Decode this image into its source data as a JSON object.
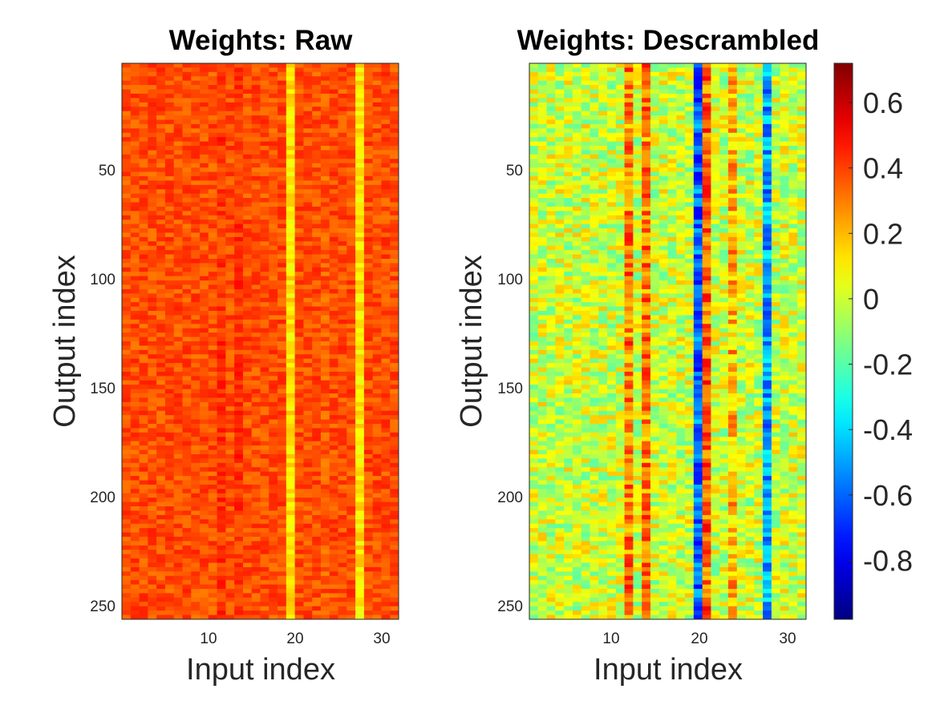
{
  "chart_data": [
    {
      "type": "heatmap",
      "title": "Weights: Raw",
      "xlabel": "Input index",
      "ylabel": "Output index",
      "x_range": [
        1,
        32
      ],
      "y_range": [
        1,
        256
      ],
      "y_reversed": true,
      "x_ticks": [
        "10",
        "20",
        "30"
      ],
      "y_ticks": [
        "50",
        "100",
        "150",
        "200",
        "250"
      ],
      "value_range": [
        0.05,
        0.55
      ],
      "typical_value": 0.38,
      "column_means": [
        0.38,
        0.38,
        0.38,
        0.38,
        0.38,
        0.38,
        0.38,
        0.38,
        0.38,
        0.38,
        0.38,
        0.42,
        0.38,
        0.42,
        0.38,
        0.38,
        0.38,
        0.38,
        0.38,
        0.12,
        0.38,
        0.38,
        0.38,
        0.36,
        0.38,
        0.38,
        0.38,
        0.12,
        0.38,
        0.38,
        0.38,
        0.38
      ],
      "colormap": "jet"
    },
    {
      "type": "heatmap",
      "title": "Weights: Descrambled",
      "xlabel": "Input index",
      "ylabel": "Output index",
      "x_range": [
        1,
        32
      ],
      "y_range": [
        1,
        256
      ],
      "y_reversed": true,
      "x_ticks": [
        "10",
        "20",
        "30"
      ],
      "y_ticks": [
        "50",
        "100",
        "150",
        "200",
        "250"
      ],
      "value_range": [
        -0.95,
        0.7
      ],
      "typical_value": 0.0,
      "column_means": [
        0,
        0,
        0,
        0,
        0,
        0,
        0,
        0,
        0,
        0,
        0,
        0.3,
        0,
        0.3,
        0,
        0,
        0,
        0,
        0,
        -0.6,
        0.35,
        0,
        0,
        0.2,
        0,
        0,
        0,
        -0.5,
        0,
        0,
        0,
        0
      ],
      "colormap": "jet",
      "colorbar": {
        "range": [
          -0.98,
          0.72
        ],
        "ticks": [
          "0.6",
          "0.4",
          "0.2",
          "0",
          "-0.2",
          "-0.4",
          "-0.6",
          "-0.8"
        ],
        "tick_values": [
          0.6,
          0.4,
          0.2,
          0,
          -0.2,
          -0.4,
          -0.6,
          -0.8
        ]
      }
    }
  ]
}
